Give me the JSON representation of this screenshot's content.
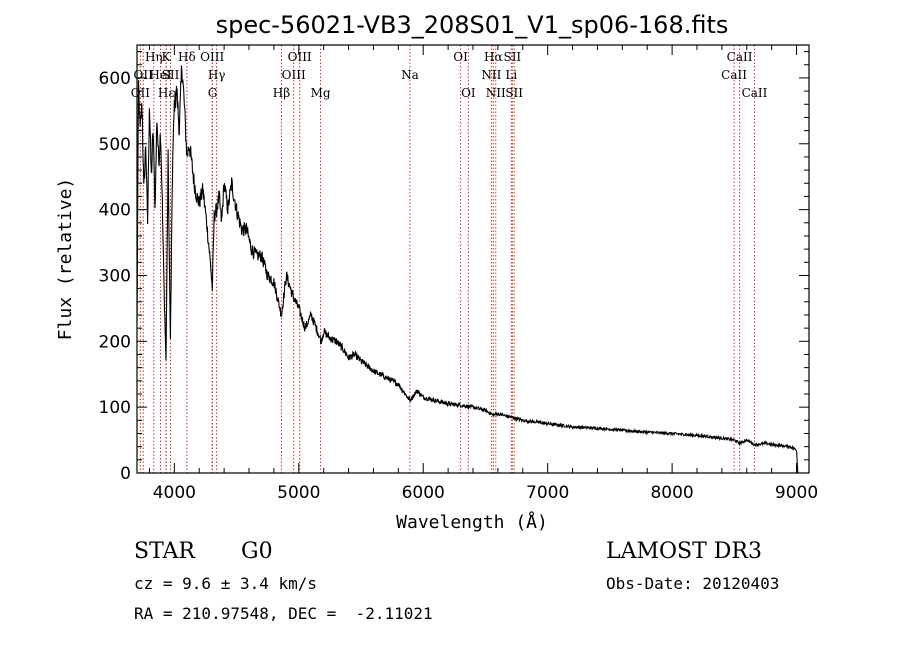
{
  "chart_data": {
    "type": "line",
    "title": "spec-56021-VB3_208S01_V1_sp06-168.fits",
    "xlabel": "Wavelength (Å)",
    "ylabel": "Flux (relative)",
    "xlim": [
      3700,
      9100
    ],
    "ylim": [
      0,
      650
    ],
    "x_ticks": [
      4000,
      5000,
      6000,
      7000,
      8000,
      9000
    ],
    "y_ticks": [
      0,
      100,
      200,
      300,
      400,
      500,
      600
    ],
    "grid": false,
    "series": [
      {
        "name": "spectrum",
        "x": [
          3700,
          3712,
          3725,
          3740,
          3755,
          3770,
          3785,
          3800,
          3815,
          3830,
          3845,
          3860,
          3875,
          3889,
          3900,
          3915,
          3933,
          3950,
          3968,
          3985,
          4000,
          4020,
          4040,
          4060,
          4080,
          4101,
          4120,
          4140,
          4160,
          4180,
          4200,
          4230,
          4260,
          4290,
          4305,
          4320,
          4340,
          4360,
          4380,
          4400,
          4430,
          4460,
          4500,
          4540,
          4580,
          4620,
          4660,
          4700,
          4750,
          4800,
          4861,
          4900,
          4950,
          5000,
          5050,
          5100,
          5150,
          5180,
          5200,
          5250,
          5300,
          5350,
          5400,
          5450,
          5500,
          5600,
          5700,
          5800,
          5893,
          5950,
          6000,
          6100,
          6200,
          6300,
          6400,
          6500,
          6563,
          6600,
          6700,
          6800,
          7000,
          7200,
          7400,
          7600,
          7800,
          8000,
          8200,
          8400,
          8500,
          8542,
          8600,
          8662,
          8750,
          8850,
          8950,
          9000,
          9010
        ],
        "y": [
          225,
          590,
          520,
          560,
          430,
          500,
          380,
          560,
          450,
          520,
          400,
          540,
          470,
          520,
          440,
          300,
          170,
          480,
          200,
          460,
          560,
          580,
          520,
          620,
          560,
          480,
          500,
          470,
          440,
          420,
          410,
          430,
          380,
          320,
          280,
          390,
          400,
          420,
          380,
          440,
          400,
          440,
          400,
          370,
          370,
          340,
          330,
          330,
          300,
          290,
          240,
          300,
          270,
          250,
          220,
          240,
          215,
          200,
          215,
          205,
          200,
          190,
          175,
          180,
          170,
          155,
          145,
          135,
          110,
          125,
          115,
          110,
          105,
          103,
          100,
          95,
          88,
          90,
          85,
          80,
          75,
          70,
          68,
          65,
          62,
          60,
          57,
          53,
          50,
          45,
          50,
          43,
          45,
          42,
          40,
          35,
          0
        ]
      }
    ],
    "lines": [
      {
        "wave": 3727,
        "label": "OII",
        "row": 3
      },
      {
        "wave": 3750,
        "label": "OII",
        "row": 2
      },
      {
        "wave": 3835,
        "label": "Hη",
        "row": 1
      },
      {
        "wave": 3889,
        "label": "HeI",
        "row": 2
      },
      {
        "wave": 3933,
        "label": "K",
        "row": 1
      },
      {
        "wave": 3935,
        "label": "Hε",
        "row": 3
      },
      {
        "wave": 3969,
        "label": "SII",
        "row": 2
      },
      {
        "wave": 4101,
        "label": "Hδ",
        "row": 1
      },
      {
        "wave": 4304,
        "label": "OIII",
        "row": 1
      },
      {
        "wave": 4307,
        "label": "G",
        "row": 3
      },
      {
        "wave": 4340,
        "label": "Hγ",
        "row": 2
      },
      {
        "wave": 4861,
        "label": "Hβ",
        "row": 3
      },
      {
        "wave": 4959,
        "label": "OIII",
        "row": 2
      },
      {
        "wave": 5007,
        "label": "OIII",
        "row": 1
      },
      {
        "wave": 5175,
        "label": "Mg",
        "row": 3
      },
      {
        "wave": 5893,
        "label": "Na",
        "row": 2
      },
      {
        "wave": 6300,
        "label": "OI",
        "row": 1
      },
      {
        "wave": 6363,
        "label": "OI",
        "row": 3
      },
      {
        "wave": 6548,
        "label": "NII",
        "row": 2
      },
      {
        "wave": 6563,
        "label": "Hα",
        "row": 1
      },
      {
        "wave": 6583,
        "label": "NII",
        "row": 3
      },
      {
        "wave": 6708,
        "label": "Li",
        "row": 2
      },
      {
        "wave": 6716,
        "label": "SII",
        "row": 1
      },
      {
        "wave": 6731,
        "label": "SII",
        "row": 3
      },
      {
        "wave": 8498,
        "label": "CaII",
        "row": 2
      },
      {
        "wave": 8542,
        "label": "CaII",
        "row": 1
      },
      {
        "wave": 8662,
        "label": "CaII",
        "row": 3
      }
    ],
    "colors": {
      "spectrum": "#000000",
      "lines": "#c0392b",
      "axes": "#000000"
    }
  },
  "info": {
    "object_class": "STAR",
    "subclass": "G0",
    "survey": "LAMOST DR3",
    "cz": "cz = 9.6 ± 3.4 km/s",
    "obs_date": "Obs-Date: 20120403",
    "coords": "RA = 210.97548, DEC =  -2.11021"
  }
}
